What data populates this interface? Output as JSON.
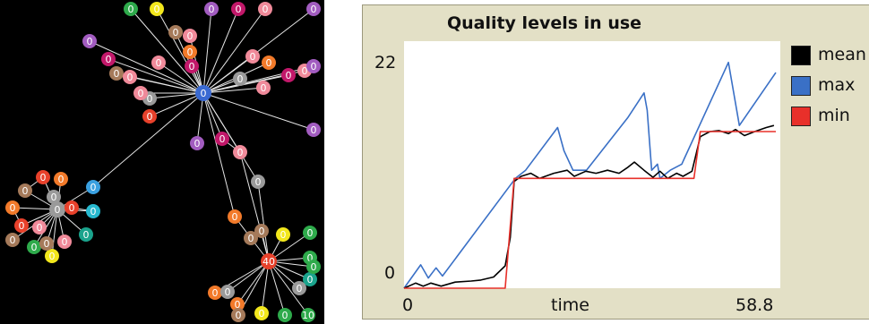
{
  "plot": {
    "title": "Quality levels in use",
    "y_max_label": "22",
    "y_min_label": "0",
    "x_min_label": "0",
    "x_max_label": "58.8",
    "x_axis_label": "time"
  },
  "legend": [
    {
      "label": "mean",
      "color": "#000000"
    },
    {
      "label": "max",
      "color": "#3a70c6"
    },
    {
      "label": "min",
      "color": "#e8302a"
    }
  ],
  "chart_data": {
    "type": "line",
    "title": "Quality levels in use",
    "xlabel": "time",
    "ylabel": "",
    "xlim": [
      0,
      58.8
    ],
    "ylim": [
      0,
      22
    ],
    "series": [
      {
        "name": "max",
        "color": "#3a70c6",
        "points": [
          [
            0,
            0
          ],
          [
            2.6,
            2.3
          ],
          [
            3.8,
            1.0
          ],
          [
            5.0,
            2.0
          ],
          [
            6.0,
            1.2
          ],
          [
            17.4,
            10.8
          ],
          [
            19.0,
            11.6
          ],
          [
            24.0,
            15.8
          ],
          [
            25.0,
            13.5
          ],
          [
            26.4,
            11.6
          ],
          [
            28.5,
            11.6
          ],
          [
            35.0,
            16.8
          ],
          [
            37.5,
            19.2
          ],
          [
            38.0,
            17.5
          ],
          [
            38.7,
            11.6
          ],
          [
            39.6,
            12.2
          ],
          [
            40.0,
            10.8
          ],
          [
            41.6,
            11.6
          ],
          [
            43.4,
            12.2
          ],
          [
            50.7,
            22.2
          ],
          [
            52.4,
            16.0
          ],
          [
            58.1,
            21.2
          ]
        ]
      },
      {
        "name": "mean",
        "color": "#000000",
        "points": [
          [
            0,
            0
          ],
          [
            1.8,
            0.5
          ],
          [
            3.0,
            0.2
          ],
          [
            4.2,
            0.5
          ],
          [
            5.8,
            0.2
          ],
          [
            8.0,
            0.6
          ],
          [
            10.5,
            0.7
          ],
          [
            12.0,
            0.8
          ],
          [
            14.0,
            1.1
          ],
          [
            15.8,
            2.2
          ],
          [
            16.6,
            5.0
          ],
          [
            17.2,
            10.5
          ],
          [
            18.3,
            11.0
          ],
          [
            19.8,
            11.3
          ],
          [
            21.2,
            10.8
          ],
          [
            23.4,
            11.3
          ],
          [
            25.5,
            11.6
          ],
          [
            26.6,
            11.0
          ],
          [
            28.4,
            11.5
          ],
          [
            30.0,
            11.3
          ],
          [
            31.8,
            11.6
          ],
          [
            33.6,
            11.3
          ],
          [
            35.0,
            11.9
          ],
          [
            36.0,
            12.4
          ],
          [
            37.5,
            11.6
          ],
          [
            38.9,
            10.9
          ],
          [
            40.0,
            11.5
          ],
          [
            41.2,
            10.8
          ],
          [
            42.6,
            11.3
          ],
          [
            43.6,
            11.0
          ],
          [
            45.0,
            11.5
          ],
          [
            46.3,
            14.9
          ],
          [
            47.8,
            15.4
          ],
          [
            49.2,
            15.5
          ],
          [
            50.7,
            15.2
          ],
          [
            51.8,
            15.6
          ],
          [
            53.2,
            15.0
          ],
          [
            54.8,
            15.4
          ],
          [
            56.6,
            15.8
          ],
          [
            57.8,
            16.0
          ]
        ]
      },
      {
        "name": "min",
        "color": "#e8302a",
        "points": [
          [
            0,
            0
          ],
          [
            15.8,
            0
          ],
          [
            17.2,
            10.8
          ],
          [
            45.3,
            10.8
          ],
          [
            46.3,
            15.4
          ],
          [
            58.1,
            15.4
          ]
        ]
      }
    ],
    "grid": false,
    "legend_position": "right"
  },
  "network": {
    "node_labels": [
      "0",
      "40",
      "10"
    ]
  }
}
